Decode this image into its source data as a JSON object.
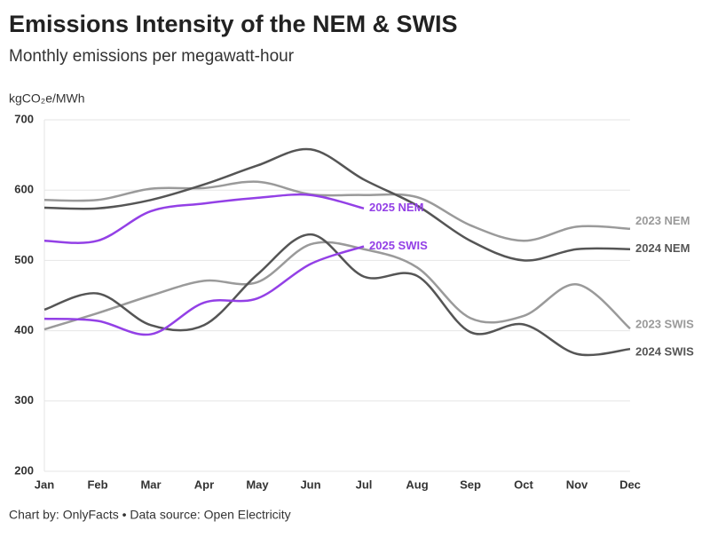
{
  "chart_data": {
    "type": "line",
    "title": "Emissions Intensity of the NEM & SWIS",
    "subtitle": "Monthly emissions per megawatt-hour",
    "y_label": "kgCO₂e/MWh",
    "footer": "Chart by: OnlyFacts • Data source: Open Electricity",
    "categories": [
      "Jan",
      "Feb",
      "Mar",
      "Apr",
      "May",
      "Jun",
      "Jul",
      "Aug",
      "Sep",
      "Oct",
      "Nov",
      "Dec"
    ],
    "ylim": [
      200,
      700
    ],
    "yticks": [
      200,
      300,
      400,
      500,
      600,
      700
    ],
    "grid": true,
    "series": [
      {
        "name": "2023 NEM",
        "color": "#9a9a9a",
        "values": [
          586,
          586,
          602,
          603,
          612,
          594,
          593,
          590,
          550,
          528,
          548,
          545
        ]
      },
      {
        "name": "2024 NEM",
        "color": "#555555",
        "values": [
          575,
          574,
          586,
          608,
          635,
          658,
          615,
          578,
          528,
          500,
          516,
          516
        ]
      },
      {
        "name": "2025 NEM",
        "color": "#9340e6",
        "values": [
          528,
          528,
          570,
          581,
          589,
          593,
          574,
          null,
          null,
          null,
          null,
          null
        ]
      },
      {
        "name": "2023 SWIS",
        "color": "#9a9a9a",
        "values": [
          402,
          425,
          450,
          471,
          469,
          523,
          516,
          490,
          418,
          421,
          466,
          403
        ]
      },
      {
        "name": "2024 SWIS",
        "color": "#555555",
        "values": [
          430,
          453,
          408,
          408,
          480,
          537,
          477,
          478,
          398,
          409,
          367,
          374
        ]
      },
      {
        "name": "2025 SWIS",
        "color": "#9340e6",
        "values": [
          417,
          414,
          395,
          440,
          446,
          495,
          520,
          null,
          null,
          null,
          null,
          null
        ]
      }
    ]
  }
}
